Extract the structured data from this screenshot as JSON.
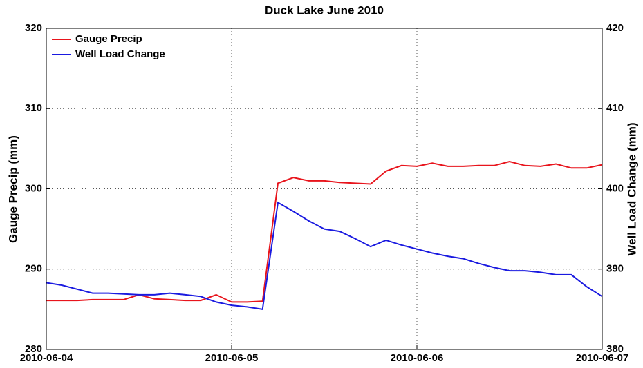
{
  "chart_data": {
    "type": "line",
    "title": "Duck Lake June 2010",
    "ylabel": "Gauge Precip (mm)",
    "y2label": "Well Load Change (mm)",
    "x": [
      "2010-06-04 00:00",
      "2010-06-04 02:00",
      "2010-06-04 04:00",
      "2010-06-04 06:00",
      "2010-06-04 08:00",
      "2010-06-04 10:00",
      "2010-06-04 12:00",
      "2010-06-04 14:00",
      "2010-06-04 16:00",
      "2010-06-04 18:00",
      "2010-06-04 20:00",
      "2010-06-04 22:00",
      "2010-06-05 00:00",
      "2010-06-05 02:00",
      "2010-06-05 04:00",
      "2010-06-05 06:00",
      "2010-06-05 08:00",
      "2010-06-05 10:00",
      "2010-06-05 12:00",
      "2010-06-05 14:00",
      "2010-06-05 16:00",
      "2010-06-05 18:00",
      "2010-06-05 20:00",
      "2010-06-05 22:00",
      "2010-06-06 00:00",
      "2010-06-06 02:00",
      "2010-06-06 04:00",
      "2010-06-06 06:00",
      "2010-06-06 08:00",
      "2010-06-06 10:00",
      "2010-06-06 12:00",
      "2010-06-06 14:00",
      "2010-06-06 16:00",
      "2010-06-06 18:00",
      "2010-06-06 20:00",
      "2010-06-06 22:00",
      "2010-06-07 00:00"
    ],
    "series": [
      {
        "name": "Gauge Precip",
        "color": "#e8141c",
        "axis": "y",
        "values": [
          286.1,
          286.1,
          286.1,
          286.2,
          286.2,
          286.2,
          286.8,
          286.3,
          286.2,
          286.1,
          286.1,
          286.8,
          285.9,
          285.9,
          286.0,
          300.7,
          301.4,
          301.0,
          301.0,
          300.8,
          300.7,
          300.6,
          302.2,
          302.9,
          302.8,
          303.2,
          302.8,
          302.8,
          302.9,
          302.9,
          303.4,
          302.9,
          302.8,
          303.1,
          302.6,
          302.6,
          303.0
        ]
      },
      {
        "name": "Well Load Change",
        "color": "#1a1ae0",
        "axis": "y2",
        "values": [
          388.3,
          388.0,
          387.5,
          387.0,
          387.0,
          386.9,
          386.8,
          386.8,
          387.0,
          386.8,
          386.6,
          385.9,
          385.5,
          385.3,
          385.0,
          398.3,
          397.2,
          396.0,
          395.0,
          394.7,
          393.8,
          392.8,
          393.6,
          393.0,
          392.5,
          392.0,
          391.6,
          391.3,
          390.7,
          390.2,
          389.8,
          389.8,
          389.6,
          389.3,
          389.3,
          387.8,
          386.6
        ]
      }
    ],
    "xlim": [
      "2010-06-04",
      "2010-06-07"
    ],
    "xticks": [
      "2010-06-04",
      "2010-06-05",
      "2010-06-06",
      "2010-06-07"
    ],
    "ylim": [
      280,
      320
    ],
    "yticks": [
      280,
      290,
      300,
      310,
      320
    ],
    "y2lim": [
      380,
      420
    ],
    "y2ticks": [
      380,
      390,
      400,
      410,
      420
    ],
    "grid": true,
    "legend": "upper left"
  }
}
